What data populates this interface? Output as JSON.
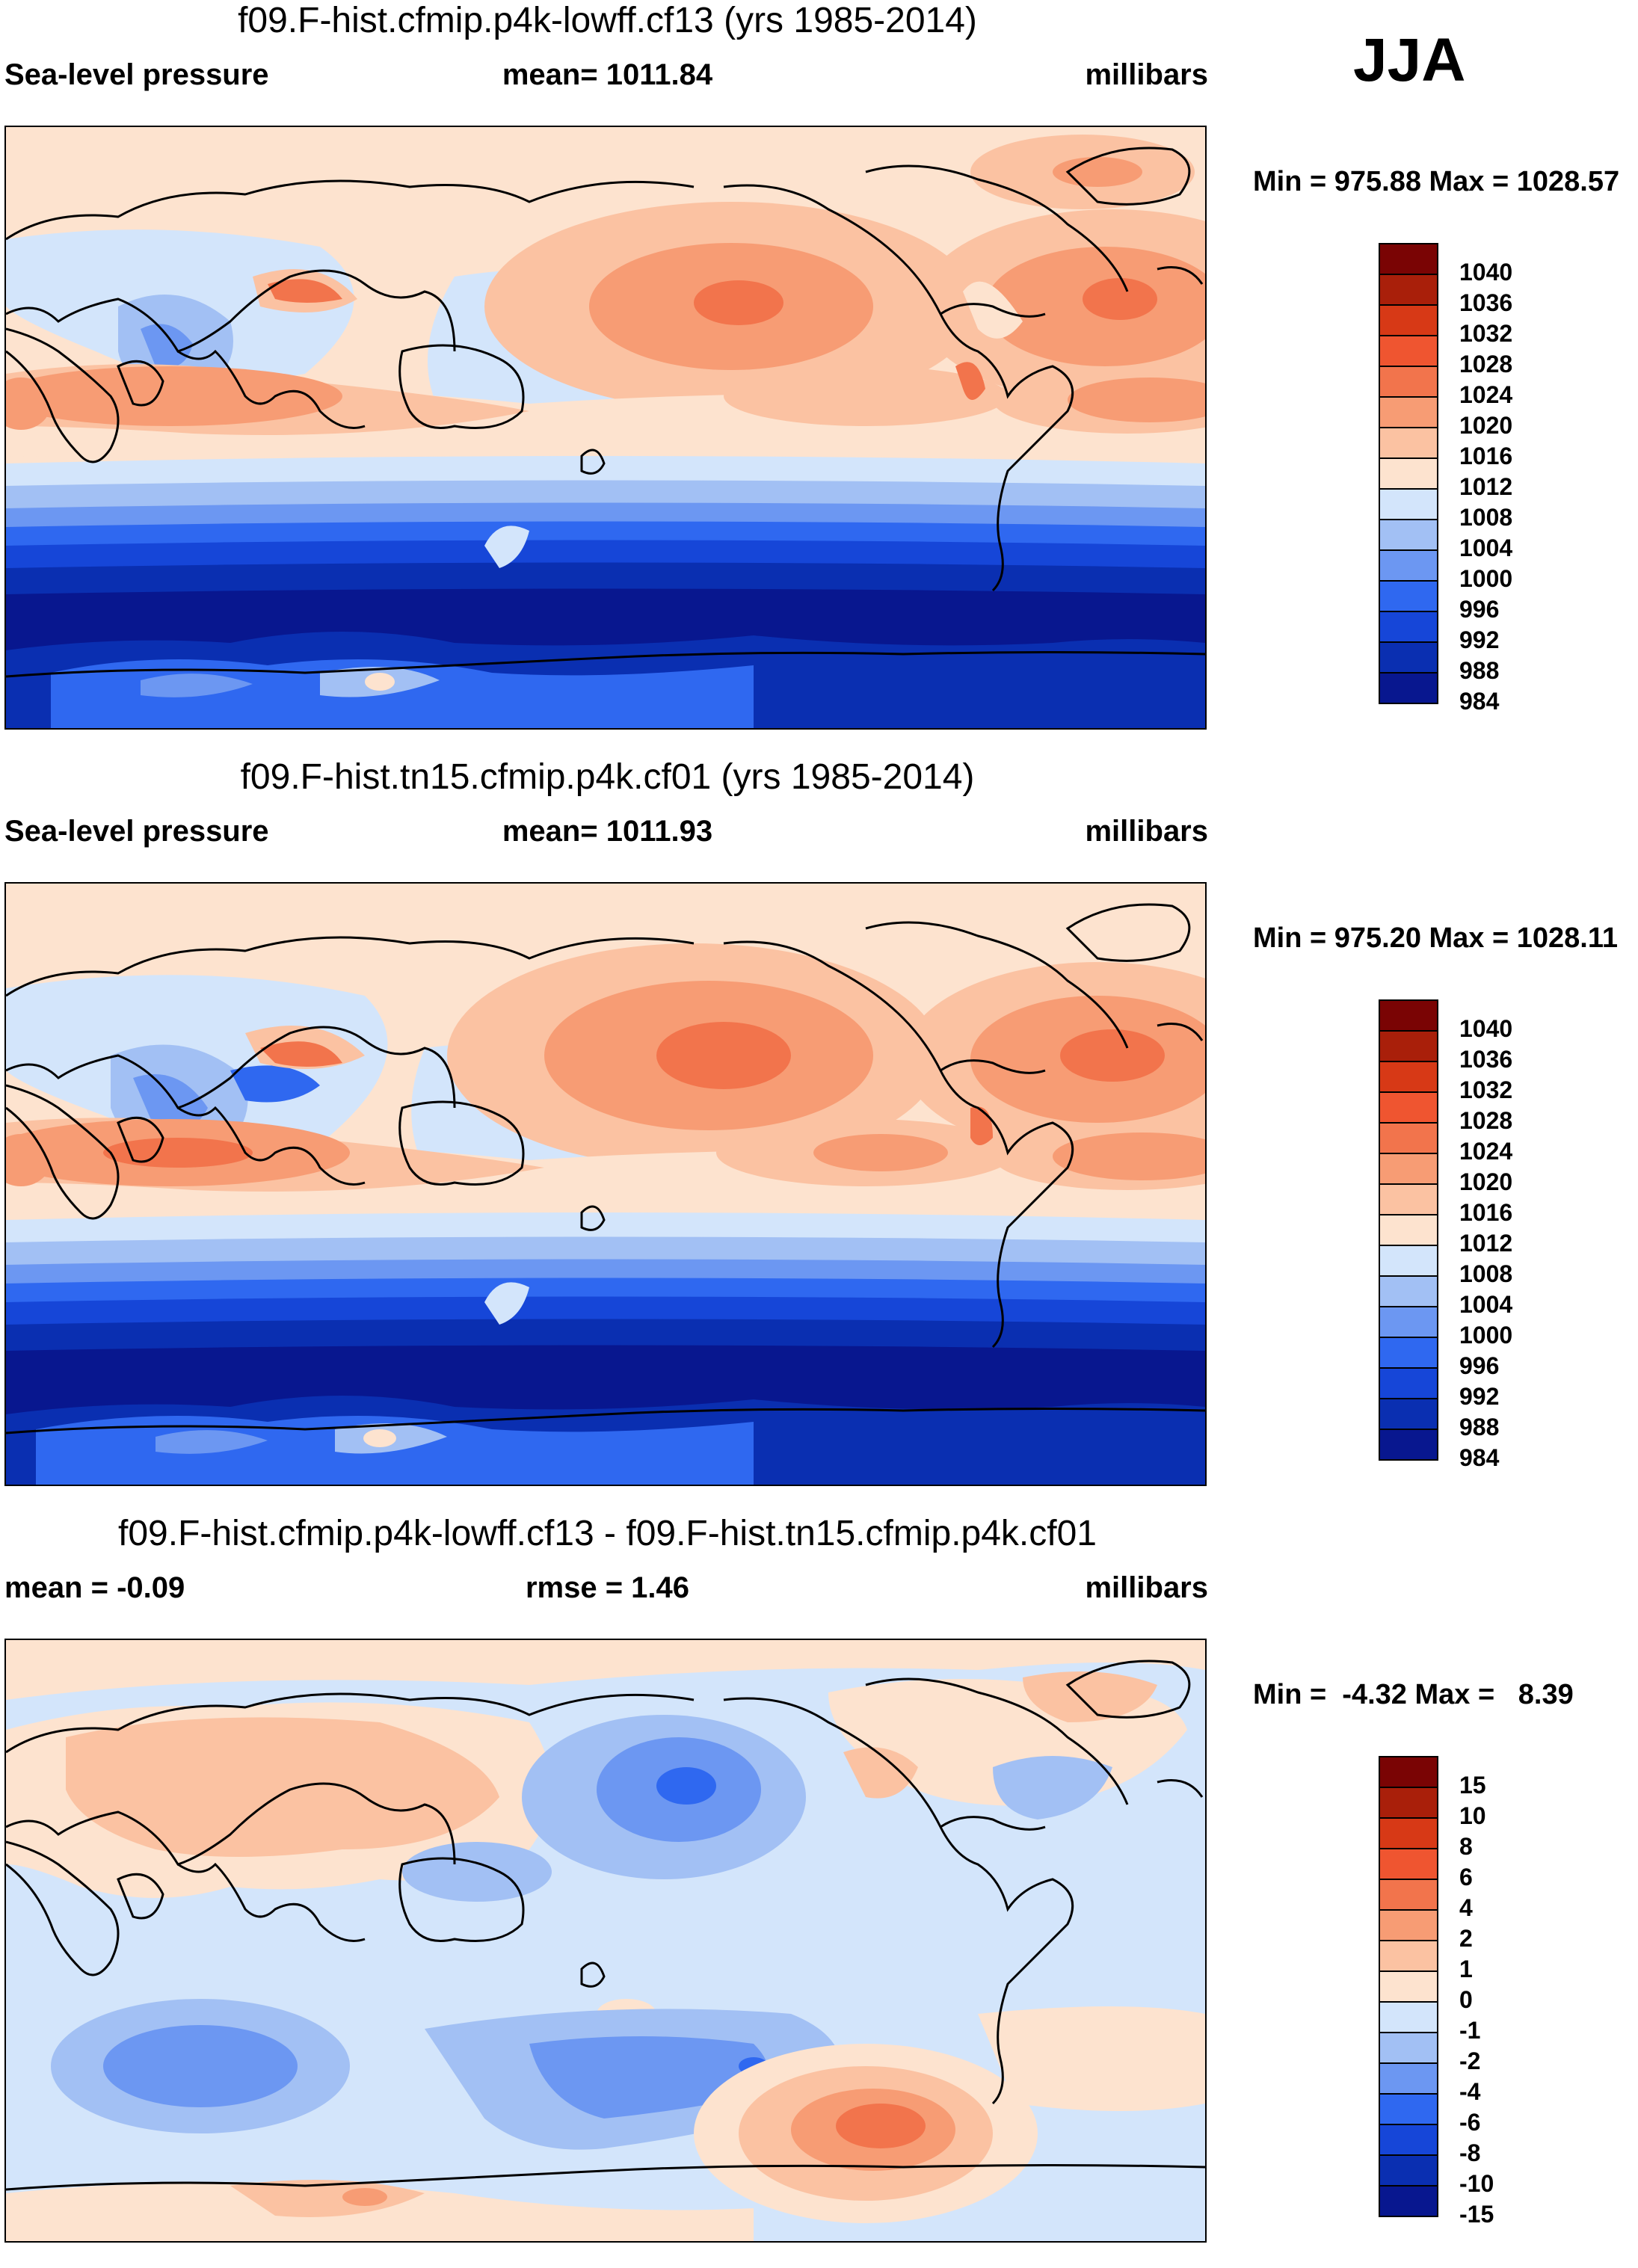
{
  "season": "JJA",
  "colors": {
    "abs": [
      "#08178f",
      "#0a2fb1",
      "#1646d8",
      "#2f68f0",
      "#6c97f2",
      "#a2c0f4",
      "#d3e5fb",
      "#fde3cf",
      "#fbc2a2",
      "#f79c74",
      "#f2744c",
      "#ef5530",
      "#d73916",
      "#a91f0a",
      "#7a0404"
    ],
    "diff": [
      "#08178f",
      "#0a2fb1",
      "#1646d8",
      "#2f68f0",
      "#6c97f2",
      "#a2c0f4",
      "#d3e5fb",
      "#fde3cf",
      "#fbc2a2",
      "#f79c74",
      "#f2744c",
      "#ef5530",
      "#d73916",
      "#a91f0a",
      "#7a0404"
    ],
    "coast": "#000000"
  },
  "panels": [
    {
      "title": "f09.F-hist.cfmip.p4k-lowff.cf13 (yrs 1985-2014)",
      "left": "Sea-level pressure",
      "mid": "mean= 1011.84",
      "right": "millibars",
      "minmax": "Min = 975.88 Max = 1028.57"
    },
    {
      "title": "f09.F-hist.tn15.cfmip.p4k.cf01 (yrs 1985-2014)",
      "left": "Sea-level pressure",
      "mid": "mean= 1011.93",
      "right": "millibars",
      "minmax": "Min = 975.20 Max = 1028.11"
    },
    {
      "title": "f09.F-hist.cfmip.p4k-lowff.cf13 - f09.F-hist.tn15.cfmip.p4k.cf01",
      "left": "mean =  -0.09",
      "mid": "rmse =   1.46",
      "right": "millibars",
      "minmax": "Min =  -4.32 Max =   8.39"
    }
  ],
  "chart_data": [
    {
      "type": "heatmap",
      "title": "f09.F-hist.cfmip.p4k-lowff.cf13 (yrs 1985-2014)",
      "variable": "Sea-level pressure",
      "units": "millibars",
      "mean": 1011.84,
      "min": 975.88,
      "max": 1028.57,
      "levels": [
        "1040",
        "1036",
        "1032",
        "1028",
        "1024",
        "1020",
        "1016",
        "1012",
        "1008",
        "1004",
        "1000",
        "996",
        "992",
        "988",
        "984"
      ]
    },
    {
      "type": "heatmap",
      "title": "f09.F-hist.tn15.cfmip.p4k.cf01 (yrs 1985-2014)",
      "variable": "Sea-level pressure",
      "units": "millibars",
      "mean": 1011.93,
      "min": 975.2,
      "max": 1028.11,
      "levels": [
        "1040",
        "1036",
        "1032",
        "1028",
        "1024",
        "1020",
        "1016",
        "1012",
        "1008",
        "1004",
        "1000",
        "996",
        "992",
        "988",
        "984"
      ]
    },
    {
      "type": "heatmap",
      "title": "f09.F-hist.cfmip.p4k-lowff.cf13 - f09.F-hist.tn15.cfmip.p4k.cf01",
      "variable": "Sea-level pressure difference",
      "units": "millibars",
      "mean": -0.09,
      "rmse": 1.46,
      "min": -4.32,
      "max": 8.39,
      "levels": [
        "15",
        "10",
        "8",
        "6",
        "4",
        "2",
        "1",
        "0",
        "-1",
        "-2",
        "-4",
        "-6",
        "-8",
        "-10",
        "-15"
      ]
    }
  ]
}
